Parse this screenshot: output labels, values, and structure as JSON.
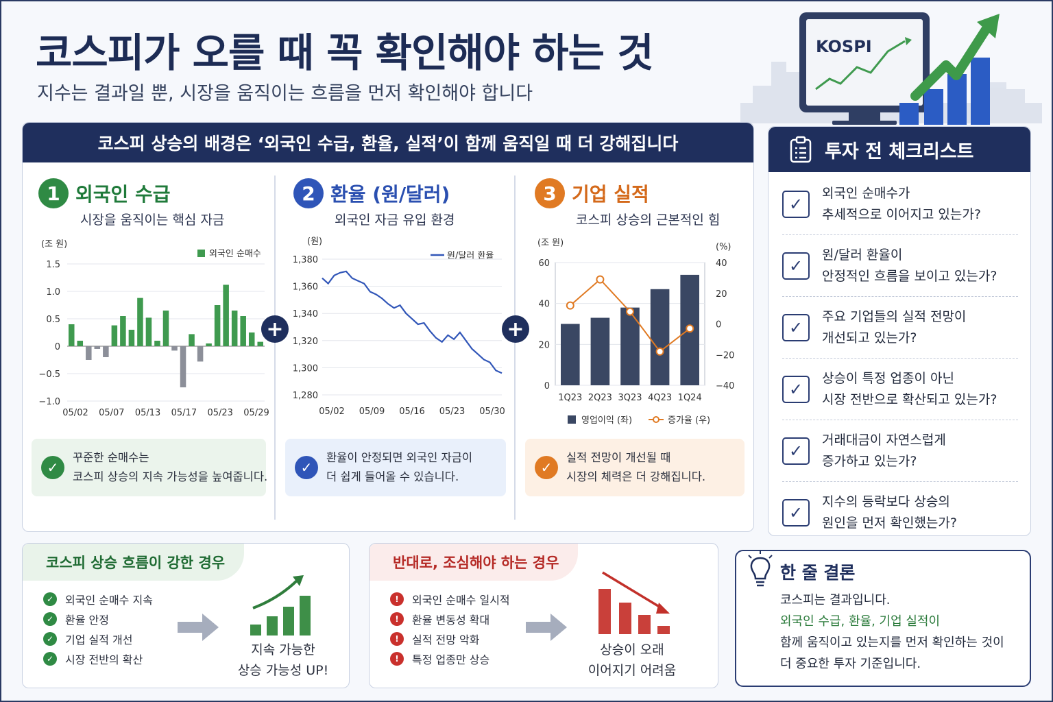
{
  "header": {
    "title": "코스피가 오를 때 꼭 확인해야 하는 것",
    "subtitle": "지수는 결과일 뿐, 시장을 움직이는 흐름을 먼저 확인해야 합니다",
    "monitor_label": "KOSPI"
  },
  "main": {
    "banner": "코스피 상승의 배경은 ‘외국인 수급, 환율, 실적’이 함께 움직일 때 더 강해집니다",
    "plus_sign": "+",
    "columns": [
      {
        "num": "1",
        "title": "외국인 수급",
        "subtitle": "시장을 움직이는 핵심 자금",
        "note_line1": "꾸준한 순매수는",
        "note_line2": "코스피 상승의 지속 가능성을 높여줍니다."
      },
      {
        "num": "2",
        "title": "환율 (원/달러)",
        "subtitle": "외국인 자금 유입 환경",
        "note_line1": "환율이 안정되면 외국인 자금이",
        "note_line2": "더 쉽게 들어올 수 있습니다."
      },
      {
        "num": "3",
        "title": "기업 실적",
        "subtitle": "코스피 상승의 근본적인 힘",
        "note_line1": "실적 전망이 개선될 때",
        "note_line2": "시장의 체력은 더 강해집니다."
      }
    ]
  },
  "chart_data": [
    {
      "type": "bar",
      "unit": "(조 원)",
      "legend": "외국인 순매수",
      "ylim": [
        -1.0,
        1.5
      ],
      "yticks": [
        "1.5",
        "1.0",
        "0.5",
        "0",
        "−0.5",
        "−1.0"
      ],
      "xticks": [
        "05/02",
        "05/07",
        "05/13",
        "05/17",
        "05/23",
        "05/29"
      ],
      "values": [
        0.4,
        0.1,
        -0.25,
        -0.05,
        -0.2,
        0.38,
        0.55,
        0.3,
        0.88,
        0.52,
        0.1,
        0.65,
        -0.08,
        -0.75,
        0.22,
        -0.28,
        0.05,
        0.75,
        1.12,
        0.65,
        0.55,
        0.25,
        0.08
      ],
      "colors": {
        "positive": "#3f9a4f",
        "negative": "#8c8f99"
      }
    },
    {
      "type": "line",
      "unit": "(원)",
      "legend": "원/달러 환율",
      "ylim": [
        1280,
        1380
      ],
      "yticks": [
        "1,380",
        "1,360",
        "1,340",
        "1,320",
        "1,300",
        "1,280"
      ],
      "xticks": [
        "05/02",
        "05/09",
        "05/16",
        "05/23",
        "05/30"
      ],
      "values": [
        1366,
        1362,
        1368,
        1370,
        1371,
        1366,
        1364,
        1362,
        1356,
        1354,
        1351,
        1347,
        1344,
        1346,
        1340,
        1336,
        1332,
        1333,
        1327,
        1322,
        1319,
        1324,
        1321,
        1326,
        1320,
        1314,
        1310,
        1306,
        1304,
        1298,
        1296
      ],
      "color": "#3156b8"
    },
    {
      "type": "bar+line",
      "unit_left": "(조 원)",
      "unit_right": "(%)",
      "categories": [
        "1Q23",
        "2Q23",
        "3Q23",
        "4Q23",
        "1Q24"
      ],
      "ylim_left": [
        0,
        60
      ],
      "ylim_right": [
        -40,
        40
      ],
      "yticks_left": [
        "60",
        "40",
        "20",
        "0"
      ],
      "yticks_right": [
        "40",
        "20",
        "0",
        "−20",
        "−40"
      ],
      "series": [
        {
          "name": "영업이익 (좌)",
          "values": [
            30,
            33,
            38,
            47,
            54
          ]
        },
        {
          "name": "증가율 (우)",
          "values": [
            12,
            29,
            8,
            -18,
            -3
          ]
        }
      ],
      "colors": {
        "bar": "#3a4763",
        "line": "#e07a23"
      }
    }
  ],
  "checklist": {
    "title": "투자 전 체크리스트",
    "check_mark": "✓",
    "items": [
      {
        "line1": "외국인 순매수가",
        "line2": "추세적으로 이어지고 있는가?"
      },
      {
        "line1": "원/달러 환율이",
        "line2": "안정적인 흐름을 보이고 있는가?"
      },
      {
        "line1": "주요 기업들의 실적 전망이",
        "line2": "개선되고 있는가?"
      },
      {
        "line1": "상승이 특정 업종이 아닌",
        "line2": "시장 전반으로 확산되고 있는가?"
      },
      {
        "line1": "거래대금이 자연스럽게",
        "line2": "증가하고 있는가?"
      },
      {
        "line1": "지수의 등락보다 상승의",
        "line2": "원인을 먼저 확인했는가?"
      }
    ]
  },
  "strong": {
    "title": "코스피 상승 흐름이 강한 경우",
    "mark": "✓",
    "items": [
      "외국인 순매수 지속",
      "환율 안정",
      "기업 실적 개선",
      "시장 전반의 확산"
    ],
    "caption_line1": "지속 가능한",
    "caption_line2": "상승 가능성 UP!"
  },
  "caution": {
    "title": "반대로, 조심해야 하는 경우",
    "mark": "!",
    "items": [
      "외국인 순매수 일시적",
      "환율 변동성 확대",
      "실적 전망 악화",
      "특정 업종만 상승"
    ],
    "caption_line1": "상승이 오래",
    "caption_line2": "이어지기 어려움"
  },
  "conclusion": {
    "title": "한 줄 결론",
    "line1": "코스피는 결과입니다.",
    "line2": "외국인 수급, 환율, 기업 실적이",
    "line3": "함께 움직이고 있는지를 먼저 확인하는 것이",
    "line4": "더 중요한 투자 기준입니다."
  },
  "colors": {
    "navy": "#1f2f5d",
    "green": "#2f8a44",
    "blue": "#2f55b8",
    "orange": "#e07a23",
    "red": "#c9302c"
  }
}
